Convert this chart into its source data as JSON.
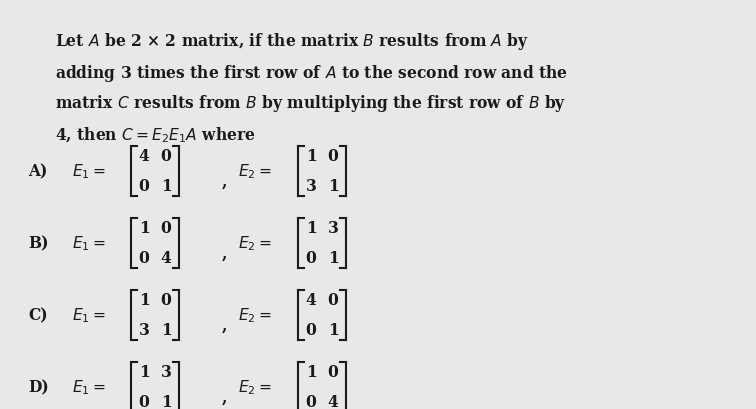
{
  "bg_color": "#e8e8e8",
  "top_stripe_color": "#b8c8d8",
  "text_color": "#1a1a1a",
  "fig_width": 7.56,
  "fig_height": 4.1,
  "dpi": 100,
  "question_lines": [
    "Let $A$ be 2 × 2 matrix, if the matrix $B$ results from $A$ by",
    "adding 3 times the first row of $A$ to the second row and the",
    "matrix $C$ results from $B$ by multiplying the first row of $B$ by",
    "4, then $C = E_2E_1A$ where"
  ],
  "answers": [
    {
      "label": "A)",
      "E1_rows": [
        [
          4,
          0
        ],
        [
          0,
          1
        ]
      ],
      "E2_rows": [
        [
          1,
          0
        ],
        [
          3,
          1
        ]
      ]
    },
    {
      "label": "B)",
      "E1_rows": [
        [
          1,
          0
        ],
        [
          0,
          4
        ]
      ],
      "E2_rows": [
        [
          1,
          3
        ],
        [
          0,
          1
        ]
      ]
    },
    {
      "label": "C)",
      "E1_rows": [
        [
          1,
          0
        ],
        [
          3,
          1
        ]
      ],
      "E2_rows": [
        [
          4,
          0
        ],
        [
          0,
          1
        ]
      ]
    },
    {
      "label": "D)",
      "E1_rows": [
        [
          1,
          3
        ],
        [
          0,
          1
        ]
      ],
      "E2_rows": [
        [
          1,
          0
        ],
        [
          0,
          4
        ]
      ]
    }
  ]
}
